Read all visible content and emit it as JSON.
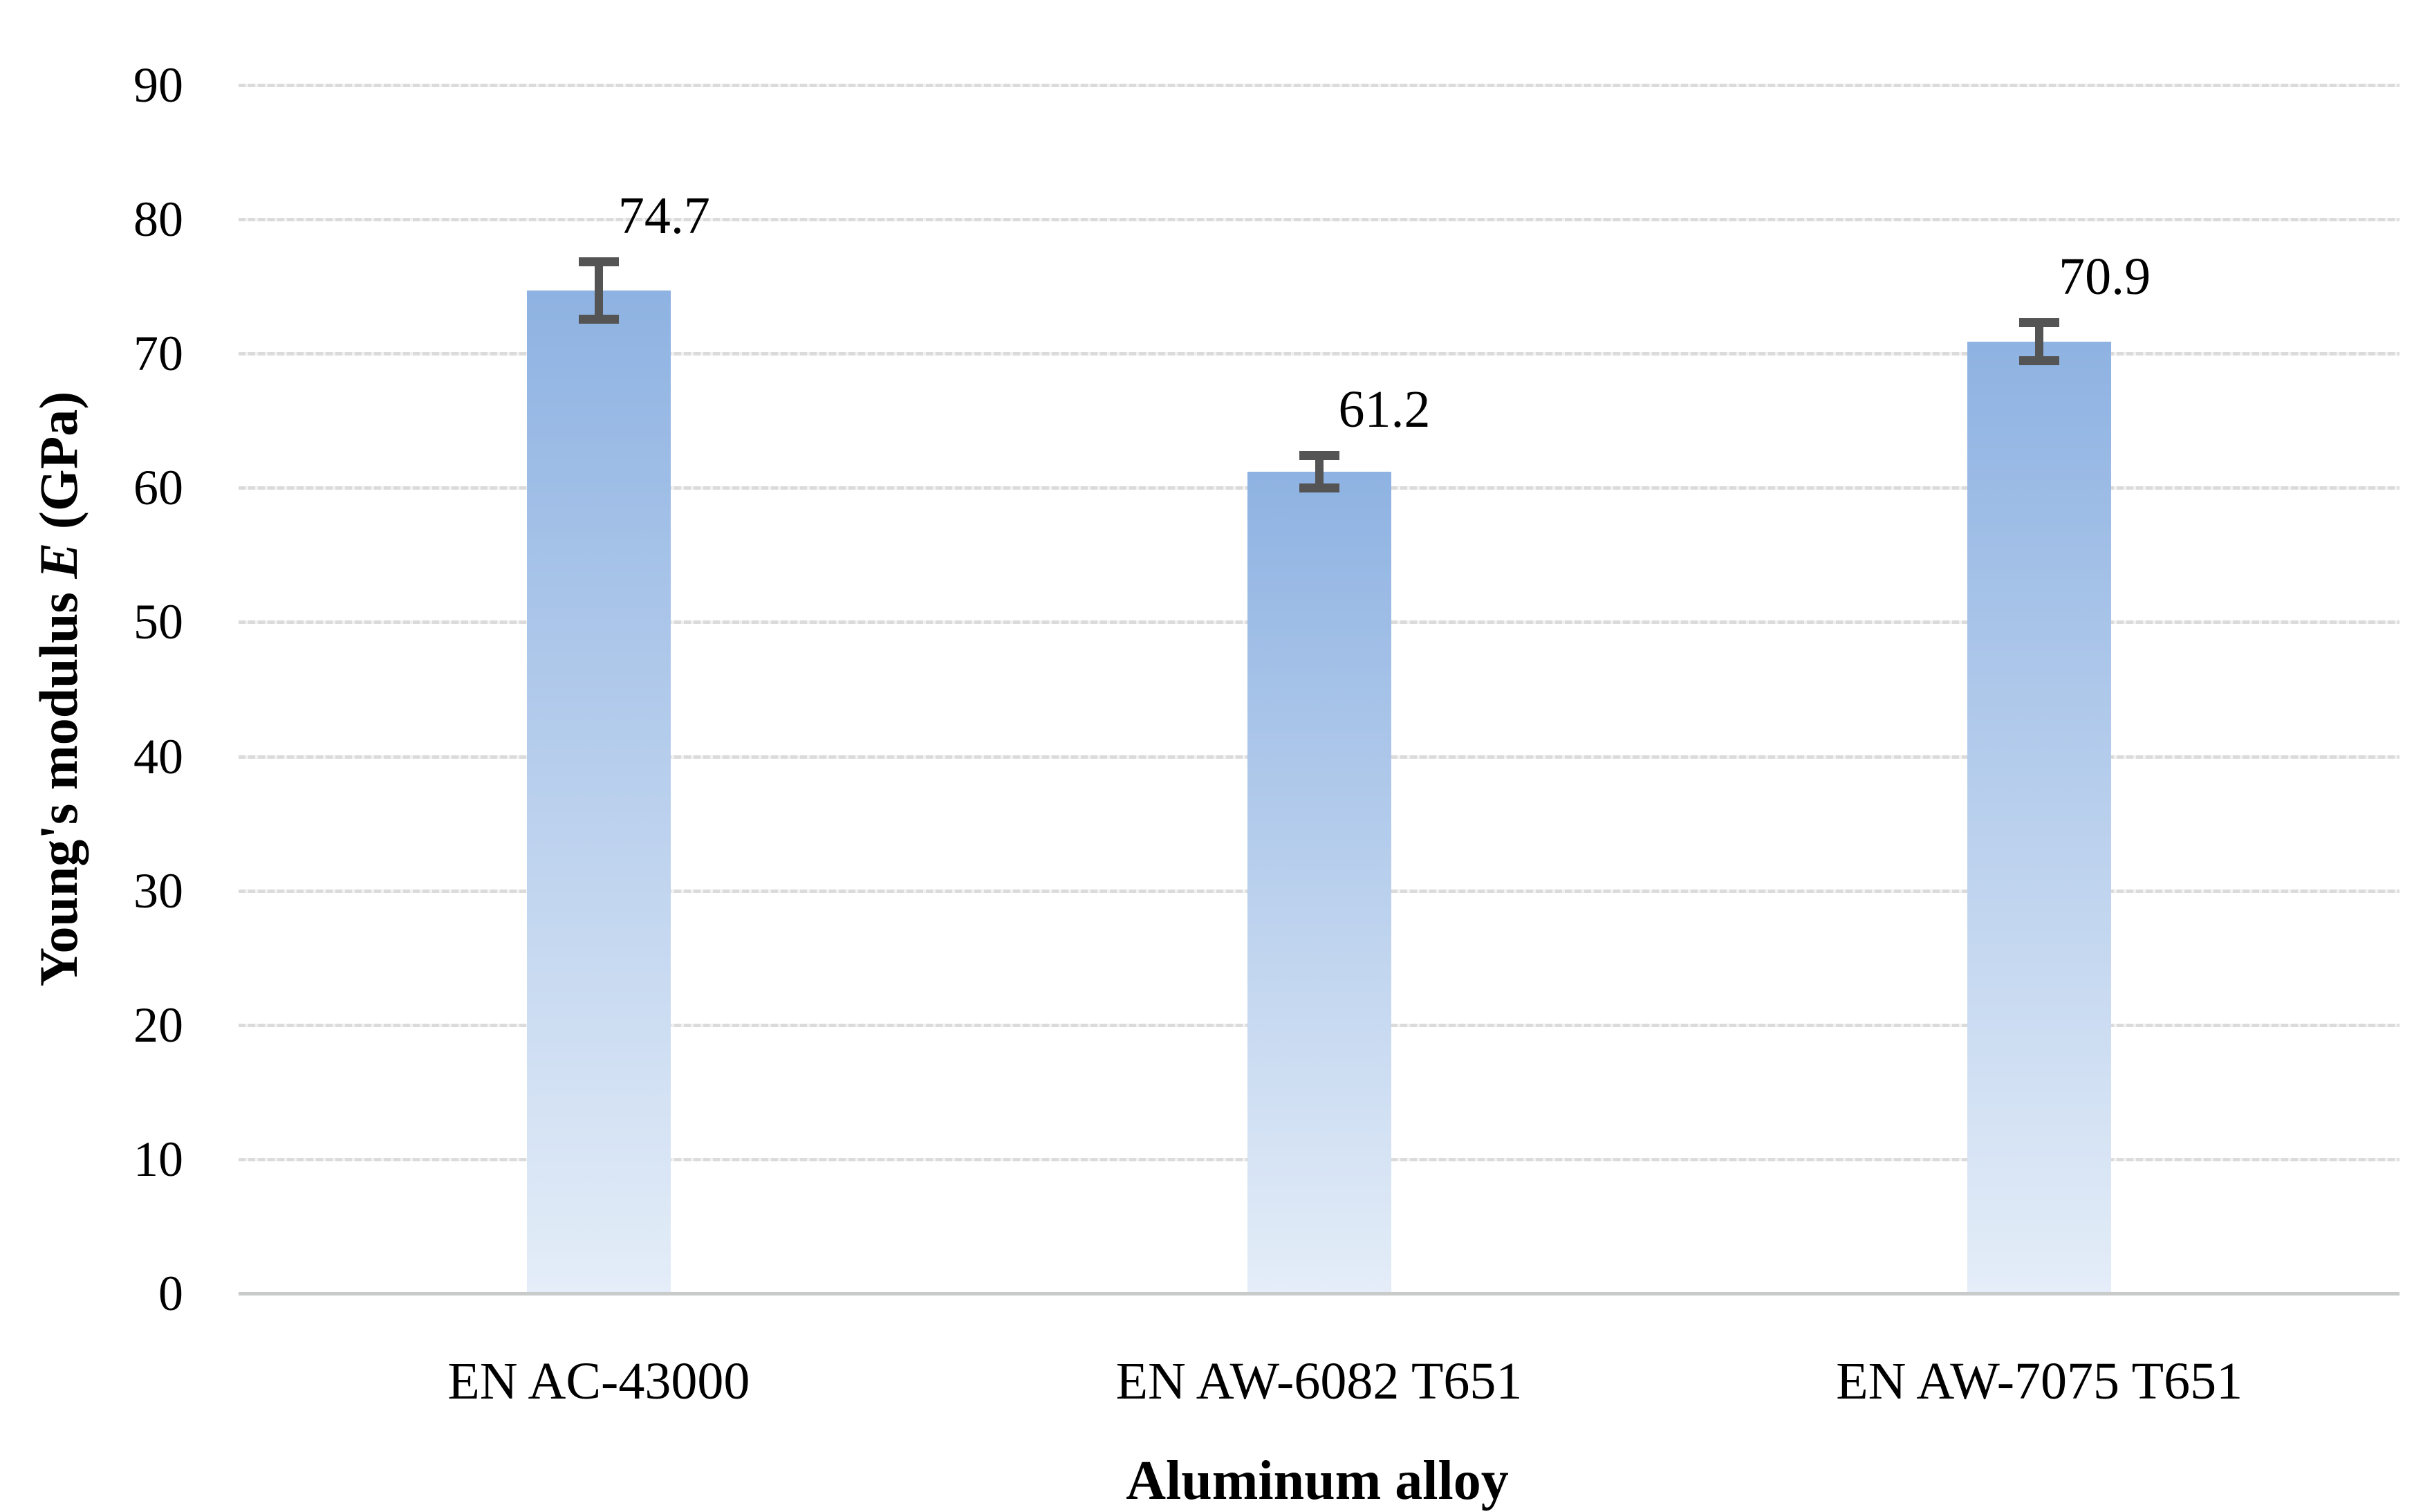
{
  "figure": {
    "y_axis_title": {
      "prefix": "Young's modulus ",
      "symbol": "E",
      "suffix": " (GPa)"
    },
    "x_axis_title": "Aluminum alloy"
  },
  "chart_data": {
    "type": "bar",
    "title": "",
    "categories": [
      "EN AC-43000",
      "EN AW-6082 T651",
      "EN AW-7075 T651"
    ],
    "values": [
      74.7,
      61.2,
      70.9
    ],
    "data_labels": [
      "74.7",
      "61.2",
      "70.9"
    ],
    "error_bars_plus": [
      2.4,
      1.5,
      1.7
    ],
    "error_bars_minus": [
      2.4,
      1.5,
      1.7
    ],
    "xlabel": "Aluminum alloy",
    "ylabel": "Young's modulus E (GPa)",
    "ylim": [
      0,
      90
    ],
    "yticks": [
      0,
      10,
      20,
      30,
      40,
      50,
      60,
      70,
      80,
      90
    ],
    "grid": "horizontal-dashed",
    "legend": "none",
    "colors": {
      "bar_gradient_top": "#8EB2E2",
      "bar_gradient_bottom": "#E4EDF8",
      "error_bar": "#545454",
      "gridline": "#DBDBDB",
      "axis_line": "#C8CBCA",
      "text": "#000000"
    }
  }
}
